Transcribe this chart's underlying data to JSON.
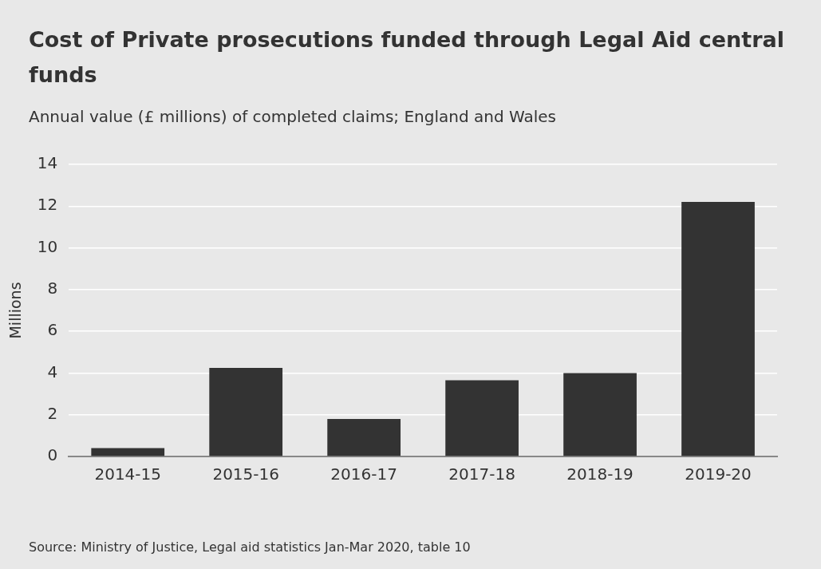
{
  "chart_data": {
    "type": "bar",
    "title": "Cost of Private prosecutions funded through Legal Aid central funds",
    "subtitle": "Annual value (£ millions) of completed claims; England and Wales",
    "ylabel": "Millions",
    "categories": [
      "2014-15",
      "2015-16",
      "2016-17",
      "2017-18",
      "2018-19",
      "2019-20"
    ],
    "values": [
      0.4,
      4.25,
      1.8,
      3.65,
      4.0,
      12.2
    ],
    "color": "#333333",
    "ylim": [
      0,
      14
    ],
    "yticks": [
      0,
      2,
      4,
      6,
      8,
      10,
      12,
      14
    ],
    "grid": "y",
    "legend": false,
    "annotations": [
      "Source: Ministry of Justice, Legal aid statistics Jan-Mar 2020, table 10"
    ]
  }
}
